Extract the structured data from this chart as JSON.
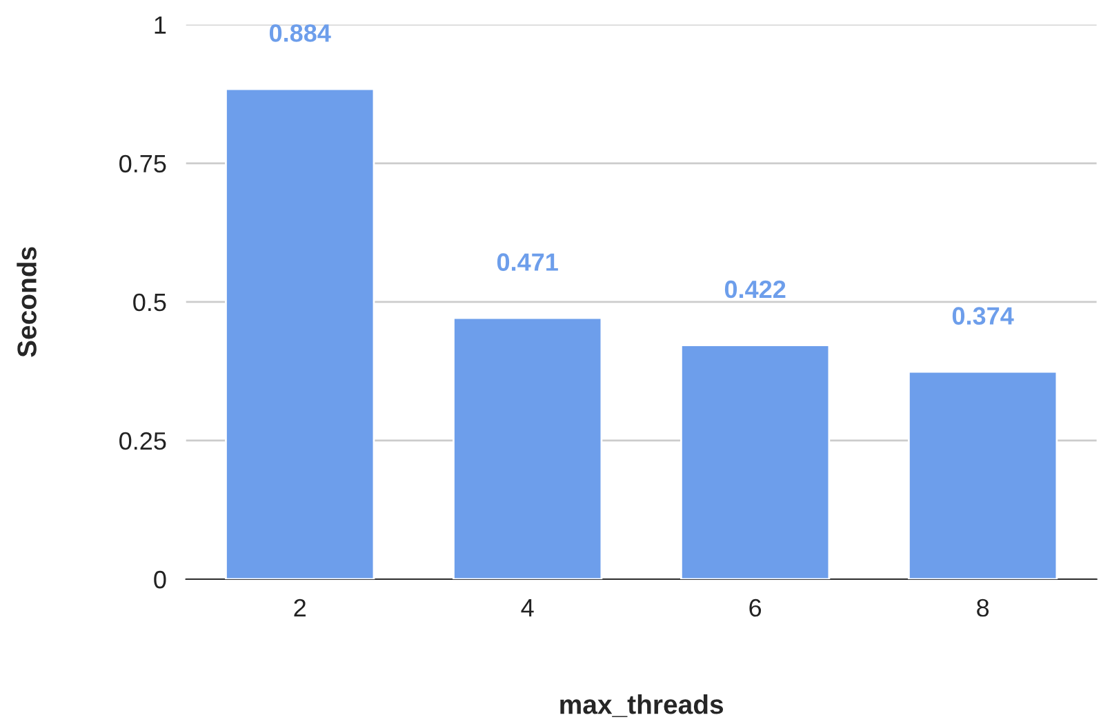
{
  "chart_data": {
    "type": "bar",
    "xlabel": "max_threads",
    "ylabel": "Seconds",
    "categories": [
      "2",
      "4",
      "6",
      "8"
    ],
    "values": [
      0.884,
      0.471,
      0.422,
      0.374
    ],
    "color": "#6d9eeb",
    "ylim": [
      0,
      1
    ],
    "yticks": [
      0,
      0.25,
      0.5,
      0.75,
      1
    ],
    "grid": "y",
    "data_labels": true
  }
}
